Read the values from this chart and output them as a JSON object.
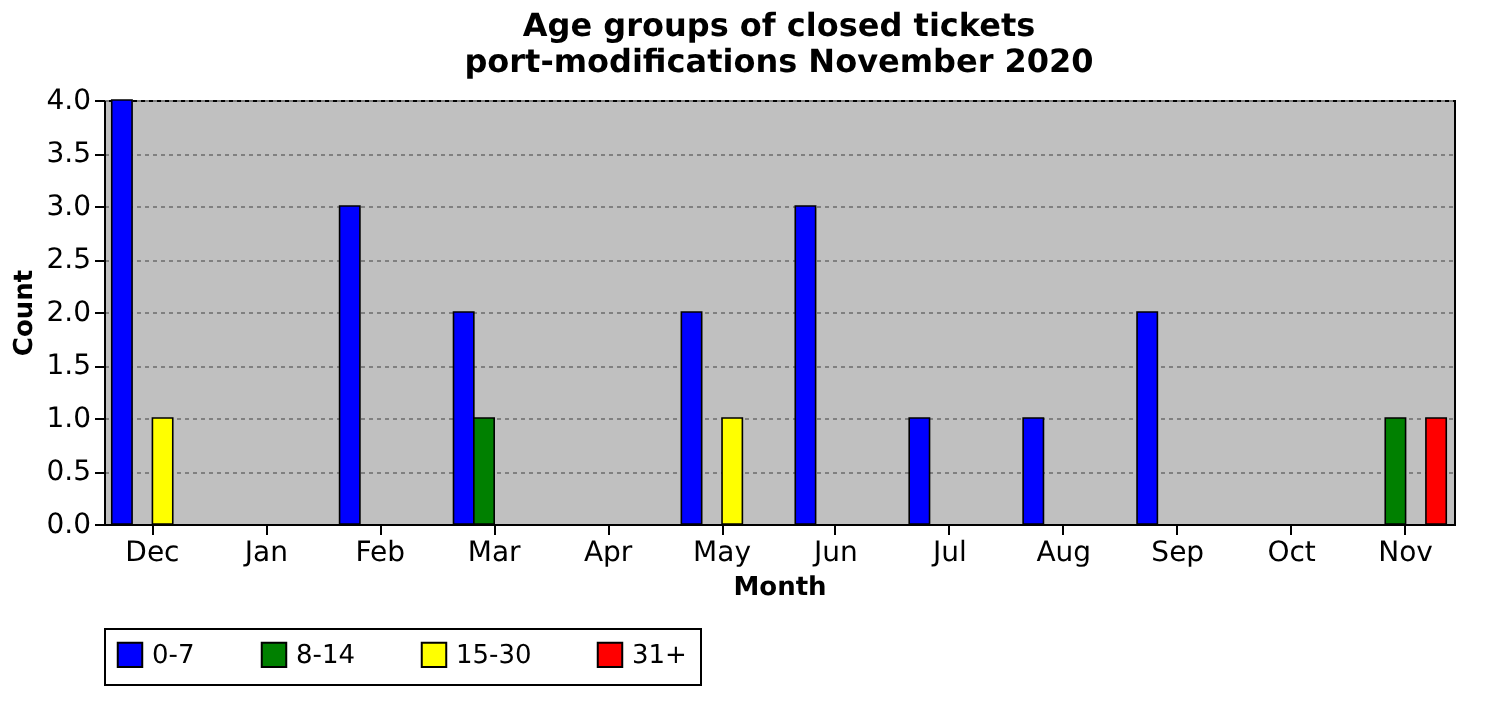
{
  "chart_data": {
    "type": "bar",
    "title": "Age groups of closed tickets\nport-modifications November 2020",
    "xlabel": "Month",
    "ylabel": "Count",
    "categories": [
      "Dec",
      "Jan",
      "Feb",
      "Mar",
      "Apr",
      "May",
      "Jun",
      "Jul",
      "Aug",
      "Sep",
      "Oct",
      "Nov"
    ],
    "series": [
      {
        "name": "0-7",
        "color": "#0000ff",
        "values": [
          4,
          0,
          3,
          2,
          0,
          2,
          3,
          1,
          1,
          2,
          0,
          0
        ]
      },
      {
        "name": "8-14",
        "color": "#008000",
        "values": [
          0,
          0,
          0,
          1,
          0,
          0,
          0,
          0,
          0,
          0,
          0,
          1
        ]
      },
      {
        "name": "15-30",
        "color": "#ffff00",
        "values": [
          1,
          0,
          0,
          0,
          0,
          1,
          0,
          0,
          0,
          0,
          0,
          0
        ]
      },
      {
        "name": "31+",
        "color": "#ff0000",
        "values": [
          0,
          0,
          0,
          0,
          0,
          0,
          0,
          0,
          0,
          0,
          0,
          1
        ]
      }
    ],
    "ylim": [
      0,
      4
    ],
    "yticks": [
      {
        "value": 0,
        "label": "0.0"
      },
      {
        "value": 0.5,
        "label": "0.5"
      },
      {
        "value": 1,
        "label": "1.0"
      },
      {
        "value": 1.5,
        "label": "1.5"
      },
      {
        "value": 2,
        "label": "2.0"
      },
      {
        "value": 2.5,
        "label": "2.5"
      },
      {
        "value": 3,
        "label": "3.0"
      },
      {
        "value": 3.5,
        "label": "3.5"
      },
      {
        "value": 4,
        "label": "4.0"
      }
    ],
    "grid": "y",
    "legend": "bottom"
  }
}
